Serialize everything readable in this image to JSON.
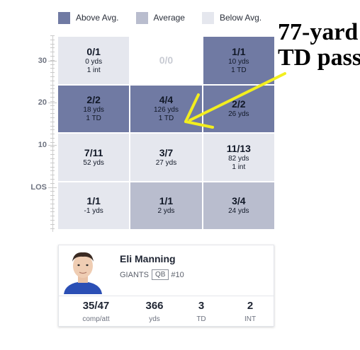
{
  "legend": [
    {
      "label": "Above Avg.",
      "color": "#707aa3"
    },
    {
      "label": "Average",
      "color": "#b9bdce"
    },
    {
      "label": "Below Avg.",
      "color": "#e5e7ee"
    }
  ],
  "chart_data": {
    "type": "heatmap",
    "y_ticks": [
      "30",
      "20",
      "10",
      "LOS"
    ],
    "zones": [
      [
        {
          "main": "0/1",
          "yds": "0 yds",
          "extra": "1 int",
          "level": "below"
        },
        {
          "main": "0/0",
          "yds": "",
          "extra": "",
          "level": "empty"
        },
        {
          "main": "1/1",
          "yds": "10 yds",
          "extra": "1 TD",
          "level": "above"
        }
      ],
      [
        {
          "main": "2/2",
          "yds": "18 yds",
          "extra": "1 TD",
          "level": "above"
        },
        {
          "main": "4/4",
          "yds": "126 yds",
          "extra": "1 TD",
          "level": "above"
        },
        {
          "main": "2/2",
          "yds": "26 yds",
          "extra": "",
          "level": "above"
        }
      ],
      [
        {
          "main": "7/11",
          "yds": "52 yds",
          "extra": "",
          "level": "below"
        },
        {
          "main": "3/7",
          "yds": "27 yds",
          "extra": "",
          "level": "below"
        },
        {
          "main": "11/13",
          "yds": "82 yds",
          "extra": "1 int",
          "level": "below"
        }
      ],
      [
        {
          "main": "1/1",
          "yds": "-1 yds",
          "extra": "",
          "level": "below"
        },
        {
          "main": "1/1",
          "yds": "2 yds",
          "extra": "",
          "level": "average"
        },
        {
          "main": "3/4",
          "yds": "24 yds",
          "extra": "",
          "level": "average"
        }
      ]
    ]
  },
  "annotation": {
    "line1": "77-yard",
    "line2": "TD pass",
    "arrow_color": "#f2ee1f"
  },
  "player": {
    "name": "Eli Manning",
    "team": "GIANTS",
    "position": "QB",
    "number": "#10",
    "stats": [
      {
        "value": "35/47",
        "label": "comp/att"
      },
      {
        "value": "366",
        "label": "yds"
      },
      {
        "value": "3",
        "label": "TD"
      },
      {
        "value": "2",
        "label": "INT"
      }
    ]
  }
}
